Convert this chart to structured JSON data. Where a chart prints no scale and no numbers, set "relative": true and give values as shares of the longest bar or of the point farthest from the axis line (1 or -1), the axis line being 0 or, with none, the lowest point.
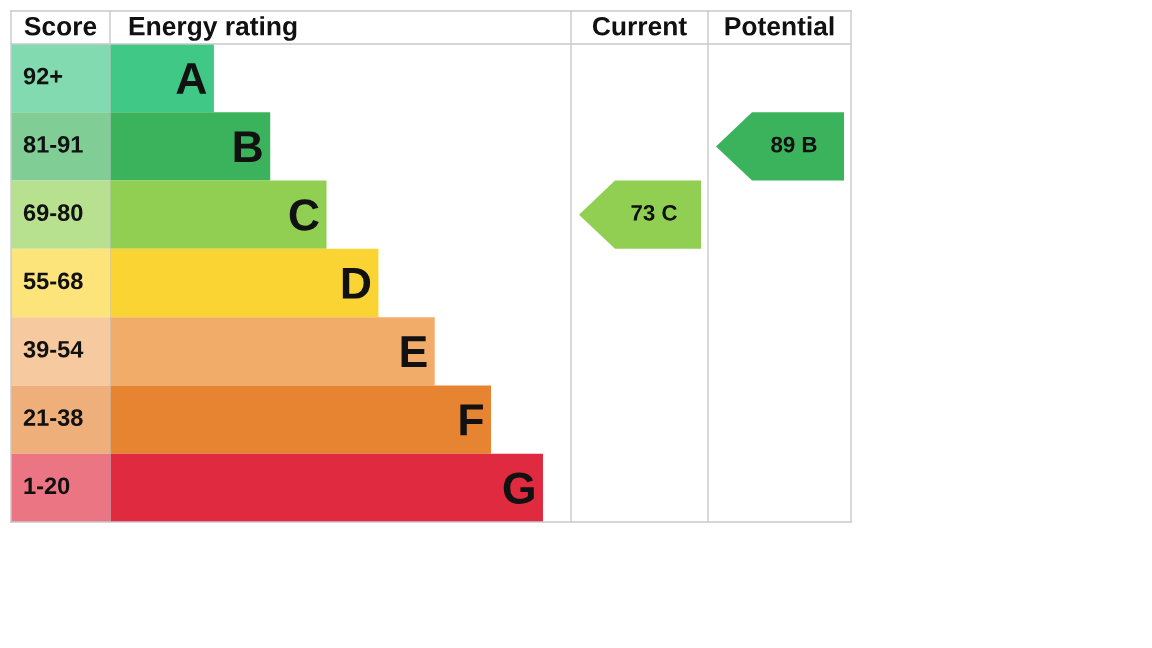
{
  "chart_data": {
    "type": "bar",
    "orientation": "horizontal",
    "relative": true,
    "categories": [
      "A",
      "B",
      "C",
      "D",
      "E",
      "F",
      "G"
    ],
    "values": [
      0.24,
      0.37,
      0.5,
      0.62,
      0.75,
      0.88,
      1
    ],
    "colors": [
      "#3fc886",
      "#3bb35c",
      "#90cf52",
      "#fad432",
      "#f2ac6a",
      "#e68432",
      "#e02a40"
    ],
    "annotations": [
      "Score",
      "Energy rating",
      "Current",
      "Potential",
      "92+",
      "81-91",
      "69-80",
      "55-68",
      "39-54",
      "21-38",
      "1-20",
      "73 C",
      "89 B"
    ]
  }
}
